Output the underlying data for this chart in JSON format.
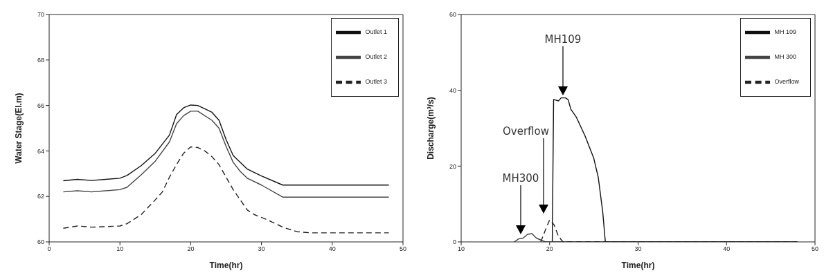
{
  "chart_data": [
    {
      "type": "line",
      "xlabel": "Time(hr)",
      "ylabel": "Water Stage(El.m)",
      "xlim": [
        0,
        50
      ],
      "xticks": [
        0,
        10,
        20,
        30,
        40,
        50
      ],
      "ylim": [
        60,
        70
      ],
      "yticks": [
        60,
        62,
        64,
        66,
        68,
        70
      ],
      "legend": "top right",
      "marker": "none",
      "series": [
        {
          "name": "Outlet 1",
          "color": "#111111",
          "line_style": "solid",
          "x": [
            2,
            4,
            6,
            8,
            10,
            11,
            13,
            15,
            17,
            18,
            19,
            20,
            21,
            23,
            24,
            25,
            26,
            28,
            30,
            33,
            48
          ],
          "values": [
            62.69,
            62.75,
            62.7,
            62.75,
            62.8,
            62.92,
            63.35,
            63.9,
            64.7,
            65.6,
            65.9,
            66.02,
            66.0,
            65.7,
            65.35,
            64.5,
            63.8,
            63.2,
            62.9,
            62.5,
            62.5
          ]
        },
        {
          "name": "Outlet 2",
          "color": "#444444",
          "line_style": "solid",
          "x": [
            2,
            4,
            6,
            8,
            10,
            11,
            13,
            15,
            17,
            18,
            19,
            20,
            21,
            23,
            24,
            25,
            26,
            27,
            28,
            30,
            33,
            48
          ],
          "values": [
            62.2,
            62.25,
            62.2,
            62.25,
            62.3,
            62.4,
            62.95,
            63.55,
            64.4,
            65.2,
            65.55,
            65.75,
            65.75,
            65.35,
            65.0,
            64.2,
            63.5,
            63.1,
            62.8,
            62.5,
            61.97,
            61.97
          ]
        },
        {
          "name": "Outlet 3",
          "color": "#222222",
          "line_style": "dashed",
          "x": [
            2,
            4,
            6,
            8,
            10,
            11,
            13,
            15,
            16,
            17,
            18,
            19,
            20,
            21,
            22,
            23,
            24,
            26,
            28,
            29,
            31,
            33,
            35,
            37,
            48
          ],
          "values": [
            60.6,
            60.7,
            60.65,
            60.67,
            60.7,
            60.8,
            61.2,
            61.85,
            62.2,
            62.85,
            63.4,
            63.9,
            64.18,
            64.15,
            64.0,
            63.75,
            63.4,
            62.3,
            61.4,
            61.2,
            60.95,
            60.65,
            60.45,
            60.4,
            60.4
          ]
        }
      ]
    },
    {
      "type": "line",
      "xlabel": "Time(hr)",
      "ylabel": "Discharge(m³/s)",
      "xlim": [
        10,
        50
      ],
      "xticks": [
        10,
        20,
        30,
        40,
        50
      ],
      "ylim": [
        0,
        60
      ],
      "yticks": [
        0,
        20,
        40,
        60
      ],
      "legend": "top right",
      "marker": "none",
      "annotations": [
        "MH109",
        "Overflow",
        "MH300"
      ],
      "series": [
        {
          "name": "MH 109",
          "color": "#111111",
          "line_style": "solid",
          "x": [
            20.3,
            20.45,
            21,
            21.3,
            21.8,
            22.1,
            22.4,
            23,
            24,
            25,
            25.5,
            26,
            26.3,
            48
          ],
          "values": [
            0,
            37.6,
            37.2,
            38,
            38,
            37.5,
            35,
            33,
            28,
            22,
            17,
            8,
            0,
            0
          ]
        },
        {
          "name": "MH 300",
          "color": "#444444",
          "line_style": "solid",
          "x": [
            16,
            16.5,
            17,
            17.5,
            18,
            18.5,
            19,
            19.5,
            48
          ],
          "values": [
            0,
            0.8,
            1,
            2,
            2.2,
            1,
            0.5,
            0,
            0
          ]
        },
        {
          "name": "Overflow",
          "color": "#222222",
          "line_style": "dashed",
          "x": [
            19,
            19.5,
            20,
            20.5,
            21,
            21.5,
            48
          ],
          "values": [
            0,
            3,
            5.8,
            4.5,
            1.5,
            0,
            0
          ]
        }
      ]
    }
  ]
}
